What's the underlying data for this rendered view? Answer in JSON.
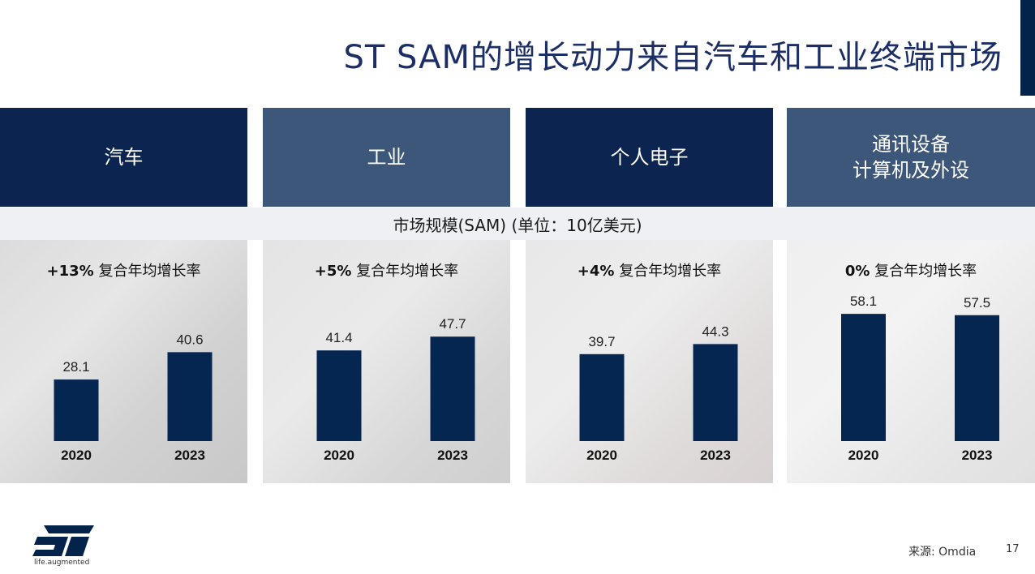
{
  "slide": {
    "title": "ST SAM的增长动力来自汽车和工业终端市场",
    "subtitle": "市场规模(SAM) (单位：10亿美元)",
    "source": "来源: Omdia",
    "page_number": "17",
    "logo_tagline": "life.augmented"
  },
  "headers": [
    {
      "line1": "汽车",
      "line2": ""
    },
    {
      "line1": "工业",
      "line2": ""
    },
    {
      "line1": "个人电子",
      "line2": ""
    },
    {
      "line1": "通讯设备",
      "line2": "计算机及外设"
    }
  ],
  "colors": {
    "bar": "#062652",
    "header_dark": "#0b2550",
    "header_mid": "#3c577a",
    "title": "#1b2f66"
  },
  "chart_data": [
    {
      "type": "bar",
      "cagr_value": "+13%",
      "cagr_label": "复合年均增长率",
      "categories": [
        "2020",
        "2023"
      ],
      "values": [
        28.1,
        40.6
      ],
      "value_labels": [
        "28.1",
        "40.6"
      ]
    },
    {
      "type": "bar",
      "cagr_value": "+5%",
      "cagr_label": "复合年均增长率",
      "categories": [
        "2020",
        "2023"
      ],
      "values": [
        41.4,
        47.7
      ],
      "value_labels": [
        "41.4",
        "47.7"
      ]
    },
    {
      "type": "bar",
      "cagr_value": "+4%",
      "cagr_label": "复合年均增长率",
      "categories": [
        "2020",
        "2023"
      ],
      "values": [
        39.7,
        44.3
      ],
      "value_labels": [
        "39.7",
        "44.3"
      ]
    },
    {
      "type": "bar",
      "cagr_value": "0%",
      "cagr_label": "复合年均增长率",
      "categories": [
        "2020",
        "2023"
      ],
      "values": [
        58.1,
        57.5
      ],
      "value_labels": [
        "58.1",
        "57.5"
      ]
    }
  ]
}
